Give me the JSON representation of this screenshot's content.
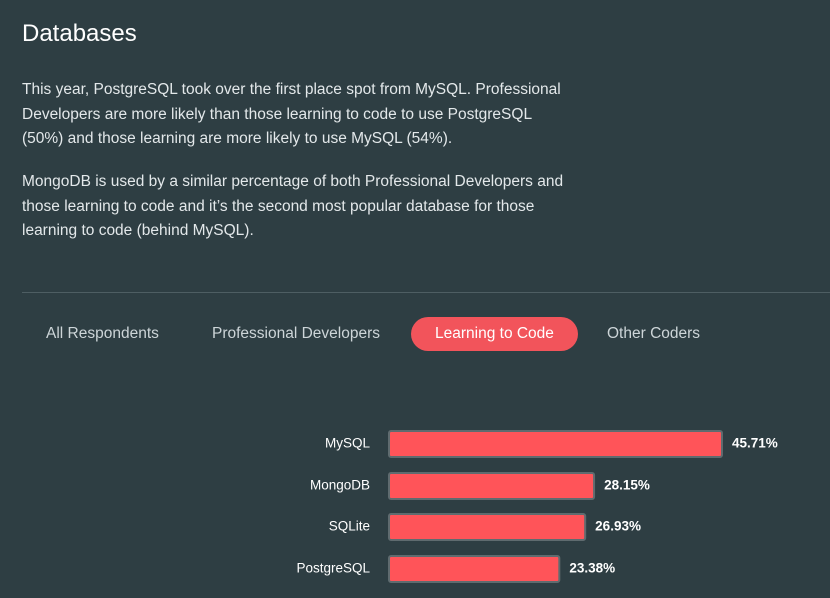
{
  "title": "Databases",
  "paragraphs": [
    "This year, PostgreSQL took over the first place spot from MySQL. Professional Developers are more likely than those learning to code to use PostgreSQL (50%) and those learning are more likely to use MySQL (54%).",
    "MongoDB is used by a similar percentage of both Professional Developers and those learning to code and it’s the second most popular database for those learning to code (behind MySQL)."
  ],
  "tabs": [
    "All Respondents",
    "Professional Developers",
    "Learning to Code",
    "Other Coders"
  ],
  "selected_tab": 2,
  "chart_data": {
    "type": "bar",
    "orientation": "horizontal",
    "categories": [
      "MySQL",
      "MongoDB",
      "SQLite",
      "PostgreSQL"
    ],
    "values": [
      45.71,
      28.15,
      26.93,
      23.38
    ],
    "value_labels": [
      "45.71%",
      "28.15%",
      "26.93%",
      "23.38%"
    ],
    "color": "#ff5459"
  }
}
